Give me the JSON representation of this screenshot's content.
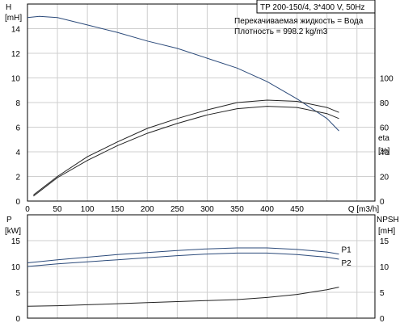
{
  "header": {
    "title": "TP 200-150/4, 3*400 V, 50Hz",
    "liquid": "Перекачиваемая жидкость = Вода",
    "density": "Плотность = 998.2 kg/m3"
  },
  "chart_data": [
    {
      "type": "line",
      "name": "qh-eta",
      "xlabel": "Q [m3/h]",
      "ylabel_left": [
        "H",
        "[mH]"
      ],
      "ylabel_right": [
        "eta",
        "[%]"
      ],
      "xlim": [
        0,
        580
      ],
      "ylim_left": [
        0,
        16
      ],
      "ylim_right": [
        0,
        160
      ],
      "xticks": [
        0,
        50,
        100,
        150,
        200,
        250,
        300,
        350,
        400,
        450
      ],
      "yticks_left": [
        0,
        2,
        4,
        6,
        8,
        10,
        12,
        14
      ],
      "yticks_right": [
        0,
        20,
        40,
        60,
        80,
        100
      ],
      "grid": true,
      "series": [
        {
          "axis": "left",
          "style": "h",
          "x": [
            0,
            20,
            50,
            100,
            150,
            200,
            250,
            300,
            350,
            400,
            450,
            500,
            520
          ],
          "y": [
            14.9,
            15.0,
            14.9,
            14.3,
            13.7,
            13.0,
            12.4,
            11.6,
            10.8,
            9.7,
            8.3,
            6.7,
            5.7
          ]
        },
        {
          "axis": "right",
          "style": "eta",
          "x": [
            10,
            50,
            100,
            150,
            200,
            250,
            300,
            350,
            400,
            450,
            500,
            520
          ],
          "y": [
            5,
            20,
            36,
            48,
            59,
            67,
            74,
            80,
            82,
            81,
            76,
            72
          ]
        },
        {
          "axis": "right",
          "style": "eta",
          "x": [
            10,
            50,
            100,
            150,
            200,
            250,
            300,
            350,
            400,
            450,
            500,
            520
          ],
          "y": [
            4,
            19,
            33,
            45,
            55,
            63,
            70,
            75,
            77,
            76,
            71,
            67
          ]
        }
      ]
    },
    {
      "type": "line",
      "name": "power-npsh",
      "ylabel_left": [
        "P",
        "[kW]"
      ],
      "ylabel_right": [
        "NPSH",
        "[mH]"
      ],
      "xlim": [
        0,
        580
      ],
      "ylim_left": [
        0,
        20
      ],
      "ylim_right": [
        0,
        20
      ],
      "yticks_left": [
        0,
        5,
        10,
        15
      ],
      "yticks_right": [
        0,
        5,
        10,
        15
      ],
      "grid": true,
      "series": [
        {
          "axis": "left",
          "style": "p",
          "name": "P1",
          "x": [
            0,
            50,
            100,
            150,
            200,
            250,
            300,
            350,
            400,
            450,
            500,
            520
          ],
          "y": [
            10.7,
            11.3,
            11.8,
            12.3,
            12.7,
            13.1,
            13.4,
            13.6,
            13.6,
            13.3,
            12.8,
            12.4
          ]
        },
        {
          "axis": "left",
          "style": "p",
          "name": "P2",
          "x": [
            0,
            50,
            100,
            150,
            200,
            250,
            300,
            350,
            400,
            450,
            500,
            520
          ],
          "y": [
            10.0,
            10.5,
            10.9,
            11.3,
            11.7,
            12.1,
            12.4,
            12.6,
            12.6,
            12.3,
            11.8,
            11.4
          ]
        },
        {
          "axis": "right",
          "style": "npsh",
          "x": [
            0,
            50,
            100,
            150,
            200,
            250,
            300,
            350,
            400,
            450,
            500,
            520
          ],
          "y": [
            2.3,
            2.4,
            2.6,
            2.8,
            3.0,
            3.2,
            3.4,
            3.6,
            4.0,
            4.6,
            5.5,
            6.0
          ]
        }
      ]
    }
  ]
}
